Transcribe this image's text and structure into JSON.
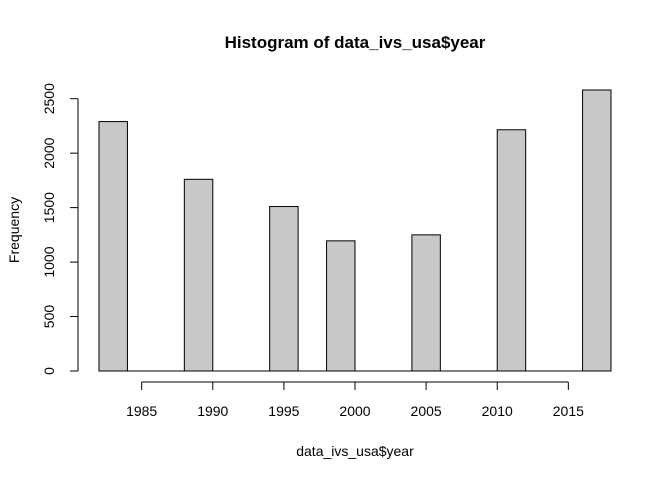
{
  "chart_data": {
    "type": "bar",
    "title": "Histogram of data_ivs_usa$year",
    "xlabel": "data_ivs_usa$year",
    "ylabel": "Frequency",
    "bins": [
      {
        "start": 1982,
        "end": 1984,
        "count": 2290
      },
      {
        "start": 1984,
        "end": 1986,
        "count": 0
      },
      {
        "start": 1986,
        "end": 1988,
        "count": 0
      },
      {
        "start": 1988,
        "end": 1990,
        "count": 1760
      },
      {
        "start": 1990,
        "end": 1992,
        "count": 0
      },
      {
        "start": 1992,
        "end": 1994,
        "count": 0
      },
      {
        "start": 1994,
        "end": 1996,
        "count": 1510
      },
      {
        "start": 1996,
        "end": 1998,
        "count": 0
      },
      {
        "start": 1998,
        "end": 2000,
        "count": 1195
      },
      {
        "start": 2000,
        "end": 2002,
        "count": 0
      },
      {
        "start": 2002,
        "end": 2004,
        "count": 0
      },
      {
        "start": 2004,
        "end": 2006,
        "count": 1250
      },
      {
        "start": 2006,
        "end": 2008,
        "count": 0
      },
      {
        "start": 2008,
        "end": 2010,
        "count": 0
      },
      {
        "start": 2010,
        "end": 2012,
        "count": 2215
      },
      {
        "start": 2012,
        "end": 2014,
        "count": 0
      },
      {
        "start": 2014,
        "end": 2016,
        "count": 0
      },
      {
        "start": 2016,
        "end": 2018,
        "count": 2580
      }
    ],
    "xticks": [
      "1985",
      "1990",
      "1995",
      "2000",
      "2005",
      "2010",
      "2015"
    ],
    "yticks": [
      "0",
      "500",
      "1000",
      "1500",
      "2000",
      "2500"
    ],
    "xlim": [
      1982,
      2018
    ],
    "ylim": [
      0,
      2580
    ],
    "bar_color": "#c8c8c8",
    "edge_color": "#000000",
    "grid": false,
    "legend": "none"
  }
}
